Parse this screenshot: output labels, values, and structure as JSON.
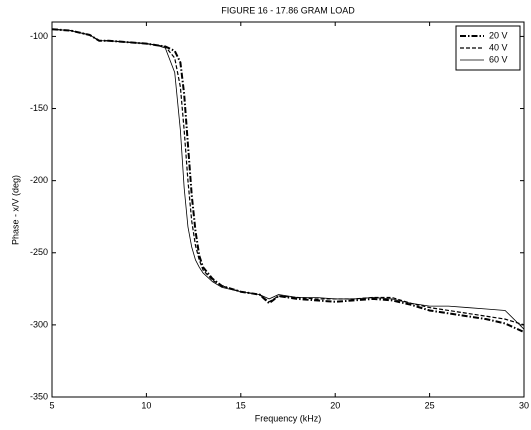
{
  "chart_data": {
    "type": "line",
    "title": "FIGURE 16 - 17.86 GRAM LOAD",
    "x_label": "Frequency (kHz)",
    "y_label": "Phase - x/V (deg)",
    "x": [
      5,
      6,
      7,
      7.5,
      8,
      9,
      10,
      10.5,
      11,
      11.5,
      11.8,
      12,
      12.2,
      12.4,
      12.6,
      12.8,
      13,
      13.5,
      14,
      15,
      16,
      16.5,
      17,
      18,
      19,
      20,
      21,
      22,
      23,
      24,
      25,
      26,
      27,
      28,
      29,
      30
    ],
    "series": [
      {
        "name": "20 V",
        "color": "#000000",
        "style": "dash-dot",
        "values": [
          -95,
          -96,
          -99,
          -103,
          -103,
          -104,
          -105,
          -106,
          -107,
          -110,
          -118,
          -140,
          -175,
          -210,
          -235,
          -252,
          -260,
          -268,
          -273,
          -277,
          -279,
          -285,
          -280,
          -282,
          -283,
          -284,
          -283,
          -282,
          -283,
          -286,
          -290,
          -292,
          -294,
          -296,
          -299,
          -305
        ]
      },
      {
        "name": "40 V",
        "color": "#000000",
        "style": "dashed",
        "values": [
          -95,
          -96,
          -99,
          -103,
          -103,
          -104,
          -105,
          -106,
          -107,
          -115,
          -135,
          -165,
          -200,
          -228,
          -245,
          -255,
          -262,
          -269,
          -273,
          -277,
          -279,
          -284,
          -280,
          -281,
          -282,
          -282,
          -282,
          -281,
          -281,
          -285,
          -288,
          -290,
          -292,
          -294,
          -296,
          -300
        ]
      },
      {
        "name": "60 V",
        "color": "#000000",
        "style": "solid",
        "values": [
          -95,
          -96,
          -99,
          -103,
          -103,
          -104,
          -105,
          -106,
          -108,
          -125,
          -165,
          -205,
          -232,
          -246,
          -255,
          -260,
          -264,
          -270,
          -274,
          -277,
          -279,
          -282,
          -279,
          -281,
          -281,
          -282,
          -282,
          -281,
          -282,
          -285,
          -287,
          -287,
          -288,
          -289,
          -290,
          -303
        ]
      }
    ],
    "xlim": [
      5,
      30
    ],
    "xticks": [
      5,
      10,
      15,
      20,
      25,
      30
    ],
    "ylim": [
      -350,
      -90
    ],
    "yticks": [
      -350,
      -300,
      -250,
      -200,
      -150,
      -100
    ],
    "grid": false,
    "legend": "top-right"
  }
}
